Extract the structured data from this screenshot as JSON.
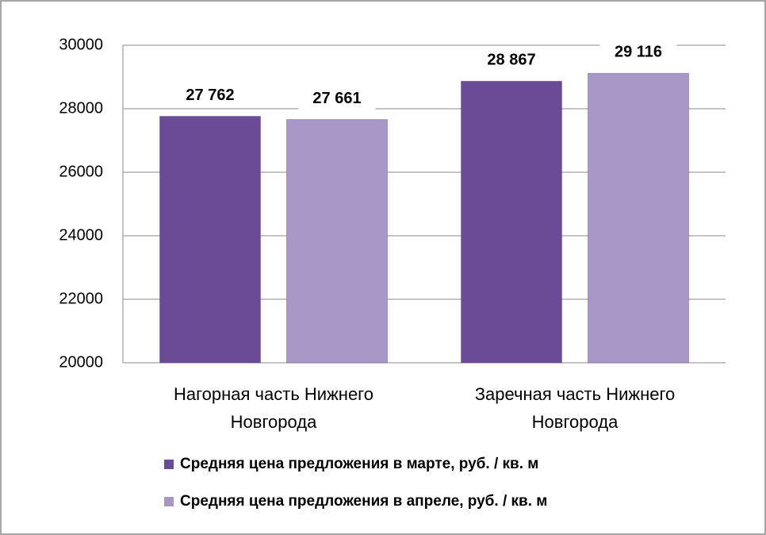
{
  "chart_data": {
    "type": "bar",
    "categories": [
      "Нагорная часть Нижнего Новгорода",
      "Заречная часть Нижнего Новгорода"
    ],
    "series": [
      {
        "name": "Средняя цена предложения в марте, руб. / кв. м",
        "color": "#6b4b96",
        "values": [
          27762,
          28867
        ],
        "value_labels": [
          "27 762",
          "28 867"
        ]
      },
      {
        "name": "Средняя цена предложения в апреле, руб. / кв. м",
        "color": "#a898c8",
        "values": [
          27661,
          29116
        ],
        "value_labels": [
          "27 661",
          "29 116"
        ]
      }
    ],
    "ylim": [
      20000,
      30000
    ],
    "yticks": [
      20000,
      22000,
      24000,
      26000,
      28000,
      30000
    ],
    "grid": true
  }
}
